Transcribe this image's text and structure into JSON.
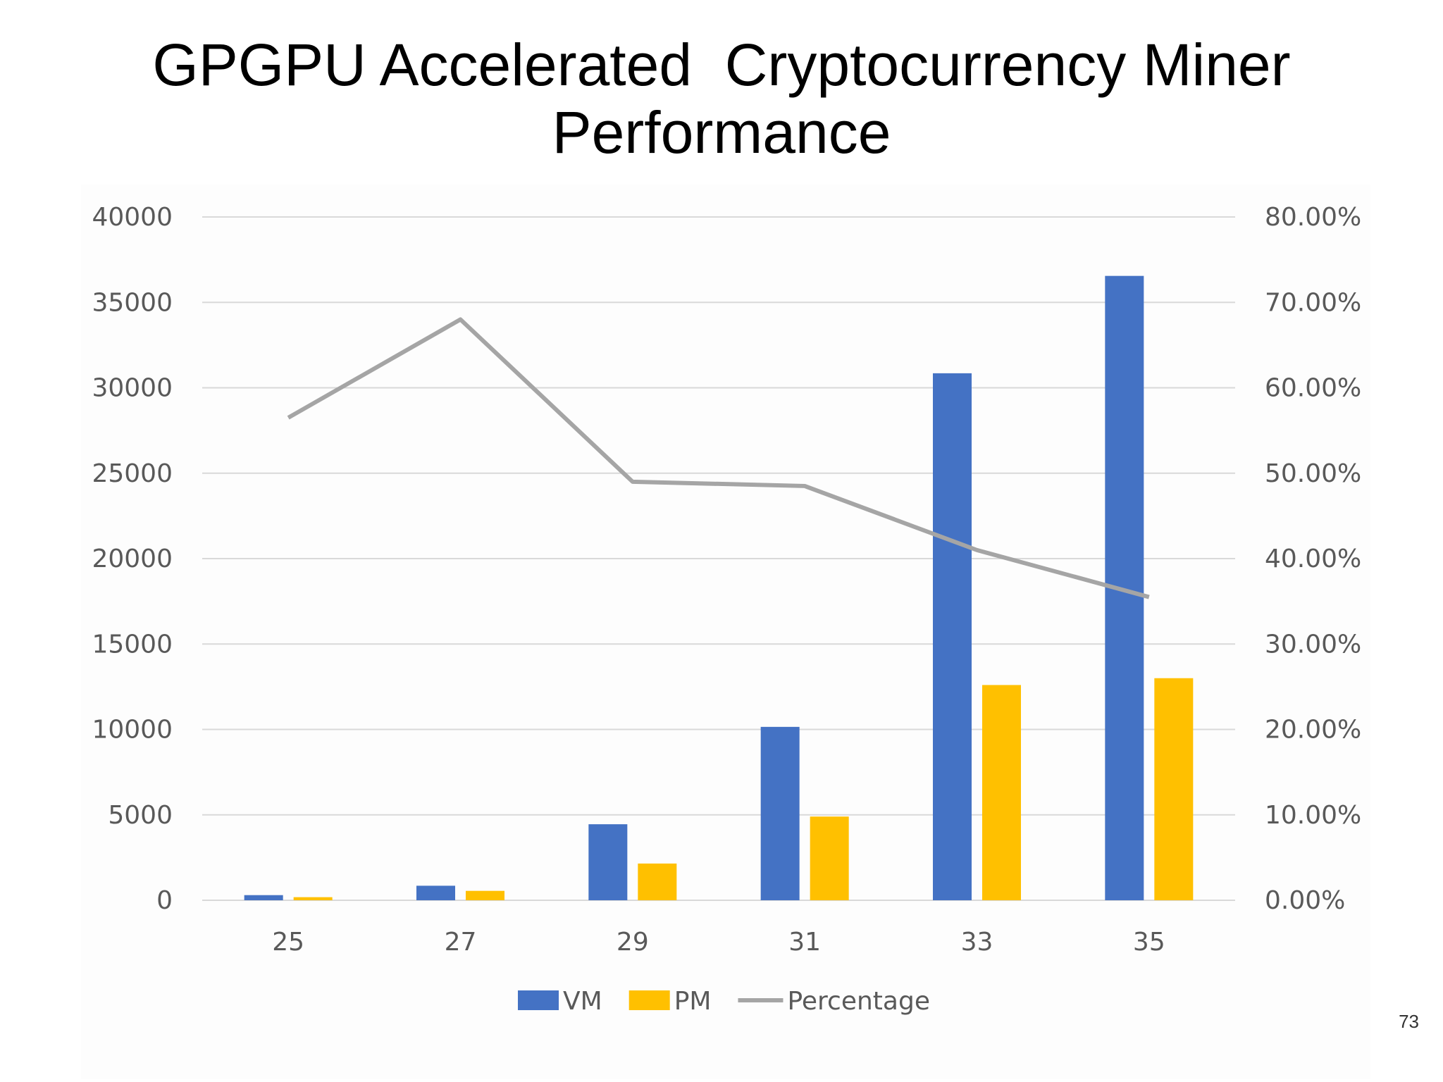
{
  "slide": {
    "title_line1": "GPGPU Accelerated  Cryptocurrency Miner",
    "title_line2": "Performance",
    "page_number": "73"
  },
  "chart_data": {
    "type": "bar",
    "title": "",
    "xlabel": "",
    "ylabel": "",
    "categories": [
      "25",
      "27",
      "29",
      "31",
      "33",
      "35"
    ],
    "series": [
      {
        "name": "VM",
        "type": "bar",
        "axis": "left",
        "color": "#4472C4",
        "values": [
          300,
          850,
          4450,
          10150,
          30850,
          36550
        ]
      },
      {
        "name": "PM",
        "type": "bar",
        "axis": "left",
        "color": "#FFC000",
        "values": [
          180,
          550,
          2150,
          4900,
          12600,
          13000
        ]
      },
      {
        "name": "Percentage",
        "type": "line",
        "axis": "right",
        "color": "#A5A5A5",
        "values": [
          0.565,
          0.68,
          0.49,
          0.485,
          0.41,
          0.355
        ]
      }
    ],
    "ylim": [
      0,
      40000
    ],
    "y_ticks": [
      "0",
      "5000",
      "10000",
      "15000",
      "20000",
      "25000",
      "30000",
      "35000",
      "40000"
    ],
    "y2lim": [
      0,
      0.8
    ],
    "y2_ticks": [
      "0.00%",
      "10.00%",
      "20.00%",
      "30.00%",
      "40.00%",
      "50.00%",
      "60.00%",
      "70.00%",
      "80.00%"
    ],
    "grid": true,
    "legend_position": "bottom"
  }
}
